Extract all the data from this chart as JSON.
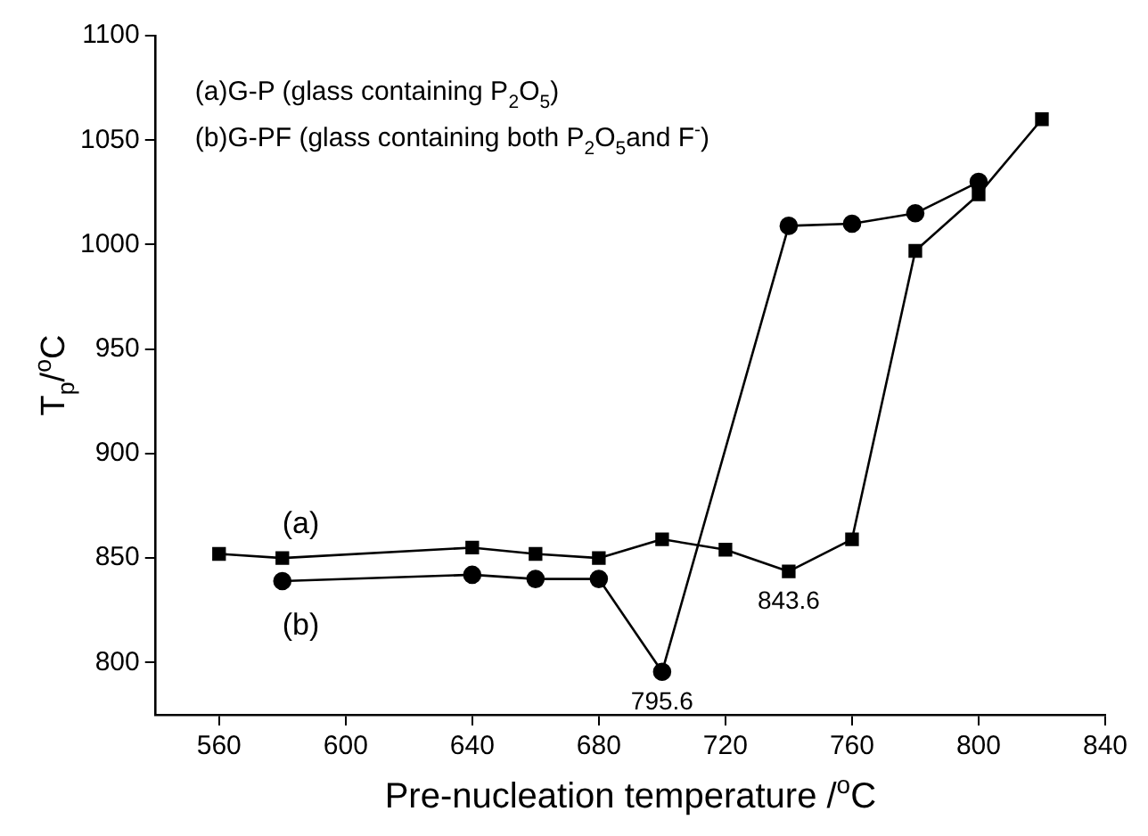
{
  "chart_data": {
    "type": "line",
    "xlabel": "Pre-nucleation temperature /$^{o}$C",
    "ylabel": "T$_{p}$/$^{o}$C",
    "xlim": [
      540,
      840
    ],
    "xticks": [
      560,
      600,
      640,
      680,
      720,
      760,
      800,
      840
    ],
    "ylim": [
      775,
      1100
    ],
    "yticks": [
      800,
      850,
      900,
      950,
      1000,
      1050,
      1100
    ],
    "grid": false,
    "legend": false,
    "line_style": "solid",
    "series": [
      {
        "name": "(a)",
        "color": "#000000",
        "marker": "square",
        "x": [
          560,
          580,
          640,
          660,
          680,
          700,
          720,
          740,
          760,
          780,
          800,
          820
        ],
        "values": [
          852,
          850,
          855,
          852,
          850,
          859,
          854,
          843.6,
          859,
          997,
          1024,
          1060
        ]
      },
      {
        "name": "(b)",
        "color": "#000000",
        "marker": "circle",
        "x": [
          580,
          640,
          660,
          680,
          700,
          740,
          760,
          780,
          800
        ],
        "values": [
          839,
          842,
          840,
          840,
          795.6,
          1009,
          1010,
          1015,
          1030
        ]
      }
    ],
    "annotations": [
      "(a)G-P (glass containing P$_{2}$O$_{5}$)",
      "(b)G-PF (glass containing both P$_{2}$O$_{5}$and F$^{-}$)",
      {
        "text": "795.6",
        "x": 700,
        "y": 795.6
      },
      {
        "text": "843.6",
        "x": 740,
        "y": 843.6
      }
    ]
  }
}
